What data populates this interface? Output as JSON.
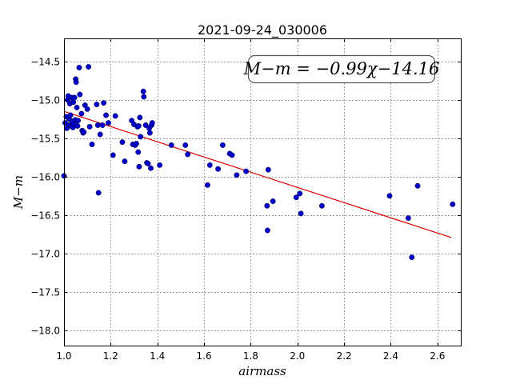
{
  "chart_data": {
    "type": "scatter",
    "title": "2021-09-24_030006",
    "xlabel": "airmass",
    "ylabel": "M−m",
    "xlim": [
      1.0,
      2.7
    ],
    "ylim": [
      -18.2,
      -14.2
    ],
    "xticks": [
      1.0,
      1.2,
      1.4,
      1.6,
      1.8,
      2.0,
      2.2,
      2.4,
      2.6
    ],
    "xtick_labels": [
      "1.0",
      "1.2",
      "1.4",
      "1.6",
      "1.8",
      "2.0",
      "2.2",
      "2.4",
      "2.6"
    ],
    "yticks": [
      -14.5,
      -15.0,
      -15.5,
      -16.0,
      -16.5,
      -17.0,
      -17.5,
      -18.0
    ],
    "ytick_labels": [
      "−14.5",
      "−15.0",
      "−15.5",
      "−16.0",
      "−16.5",
      "−17.0",
      "−17.5",
      "−18.0"
    ],
    "grid": true,
    "annotation": "M−m = −0.99χ−14.16",
    "annotation_position": "top-right",
    "point_color": "#0000cc",
    "fit_color": "#dd0000",
    "fit": {
      "slope": -0.99,
      "intercept": -14.16,
      "x_range": [
        1.0,
        2.66
      ]
    },
    "points": [
      [
        1.0,
        -15.99
      ],
      [
        1.005,
        -15.3
      ],
      [
        1.01,
        -15.22
      ],
      [
        1.012,
        -15.37
      ],
      [
        1.015,
        -15.0
      ],
      [
        1.018,
        -14.95
      ],
      [
        1.02,
        -15.33
      ],
      [
        1.022,
        -15.25
      ],
      [
        1.025,
        -15.05
      ],
      [
        1.028,
        -15.2
      ],
      [
        1.03,
        -15.34
      ],
      [
        1.032,
        -14.97
      ],
      [
        1.035,
        -15.28
      ],
      [
        1.038,
        -15.36
      ],
      [
        1.04,
        -15.03
      ],
      [
        1.042,
        -15.3
      ],
      [
        1.045,
        -14.97
      ],
      [
        1.048,
        -15.26
      ],
      [
        1.05,
        -14.73
      ],
      [
        1.052,
        -14.77
      ],
      [
        1.055,
        -15.1
      ],
      [
        1.058,
        -15.34
      ],
      [
        1.06,
        -15.27
      ],
      [
        1.065,
        -14.58
      ],
      [
        1.068,
        -14.93
      ],
      [
        1.075,
        -15.18
      ],
      [
        1.078,
        -15.4
      ],
      [
        1.082,
        -15.43
      ],
      [
        1.085,
        -15.42
      ],
      [
        1.09,
        -15.07
      ],
      [
        1.1,
        -15.12
      ],
      [
        1.105,
        -14.57
      ],
      [
        1.11,
        -15.35
      ],
      [
        1.12,
        -15.58
      ],
      [
        1.14,
        -15.06
      ],
      [
        1.145,
        -15.33
      ],
      [
        1.148,
        -16.21
      ],
      [
        1.155,
        -15.45
      ],
      [
        1.165,
        -15.33
      ],
      [
        1.17,
        -15.04
      ],
      [
        1.18,
        -15.2
      ],
      [
        1.19,
        -15.3
      ],
      [
        1.21,
        -15.72
      ],
      [
        1.22,
        -15.21
      ],
      [
        1.25,
        -15.55
      ],
      [
        1.26,
        -15.8
      ],
      [
        1.29,
        -15.27
      ],
      [
        1.295,
        -15.58
      ],
      [
        1.3,
        -15.32
      ],
      [
        1.305,
        -15.59
      ],
      [
        1.31,
        -15.57
      ],
      [
        1.315,
        -15.35
      ],
      [
        1.318,
        -15.68
      ],
      [
        1.32,
        -15.34
      ],
      [
        1.322,
        -15.87
      ],
      [
        1.325,
        -15.23
      ],
      [
        1.328,
        -15.48
      ],
      [
        1.34,
        -14.89
      ],
      [
        1.342,
        -14.96
      ],
      [
        1.35,
        -15.33
      ],
      [
        1.355,
        -15.82
      ],
      [
        1.36,
        -15.83
      ],
      [
        1.365,
        -15.37
      ],
      [
        1.368,
        -15.43
      ],
      [
        1.372,
        -15.89
      ],
      [
        1.375,
        -15.33
      ],
      [
        1.378,
        -15.3
      ],
      [
        1.41,
        -15.85
      ],
      [
        1.46,
        -15.59
      ],
      [
        1.52,
        -15.59
      ],
      [
        1.53,
        -15.71
      ],
      [
        1.615,
        -16.11
      ],
      [
        1.625,
        -15.85
      ],
      [
        1.66,
        -15.9
      ],
      [
        1.68,
        -15.59
      ],
      [
        1.71,
        -15.7
      ],
      [
        1.72,
        -15.72
      ],
      [
        1.74,
        -15.98
      ],
      [
        1.78,
        -15.93
      ],
      [
        1.87,
        -16.38
      ],
      [
        1.872,
        -16.7
      ],
      [
        1.875,
        -15.91
      ],
      [
        1.895,
        -16.32
      ],
      [
        1.995,
        -16.27
      ],
      [
        2.01,
        -16.22
      ],
      [
        2.015,
        -16.48
      ],
      [
        2.105,
        -16.38
      ],
      [
        2.395,
        -16.25
      ],
      [
        2.475,
        -16.54
      ],
      [
        2.49,
        -17.05
      ],
      [
        2.515,
        -16.12
      ],
      [
        2.665,
        -16.36
      ]
    ]
  }
}
